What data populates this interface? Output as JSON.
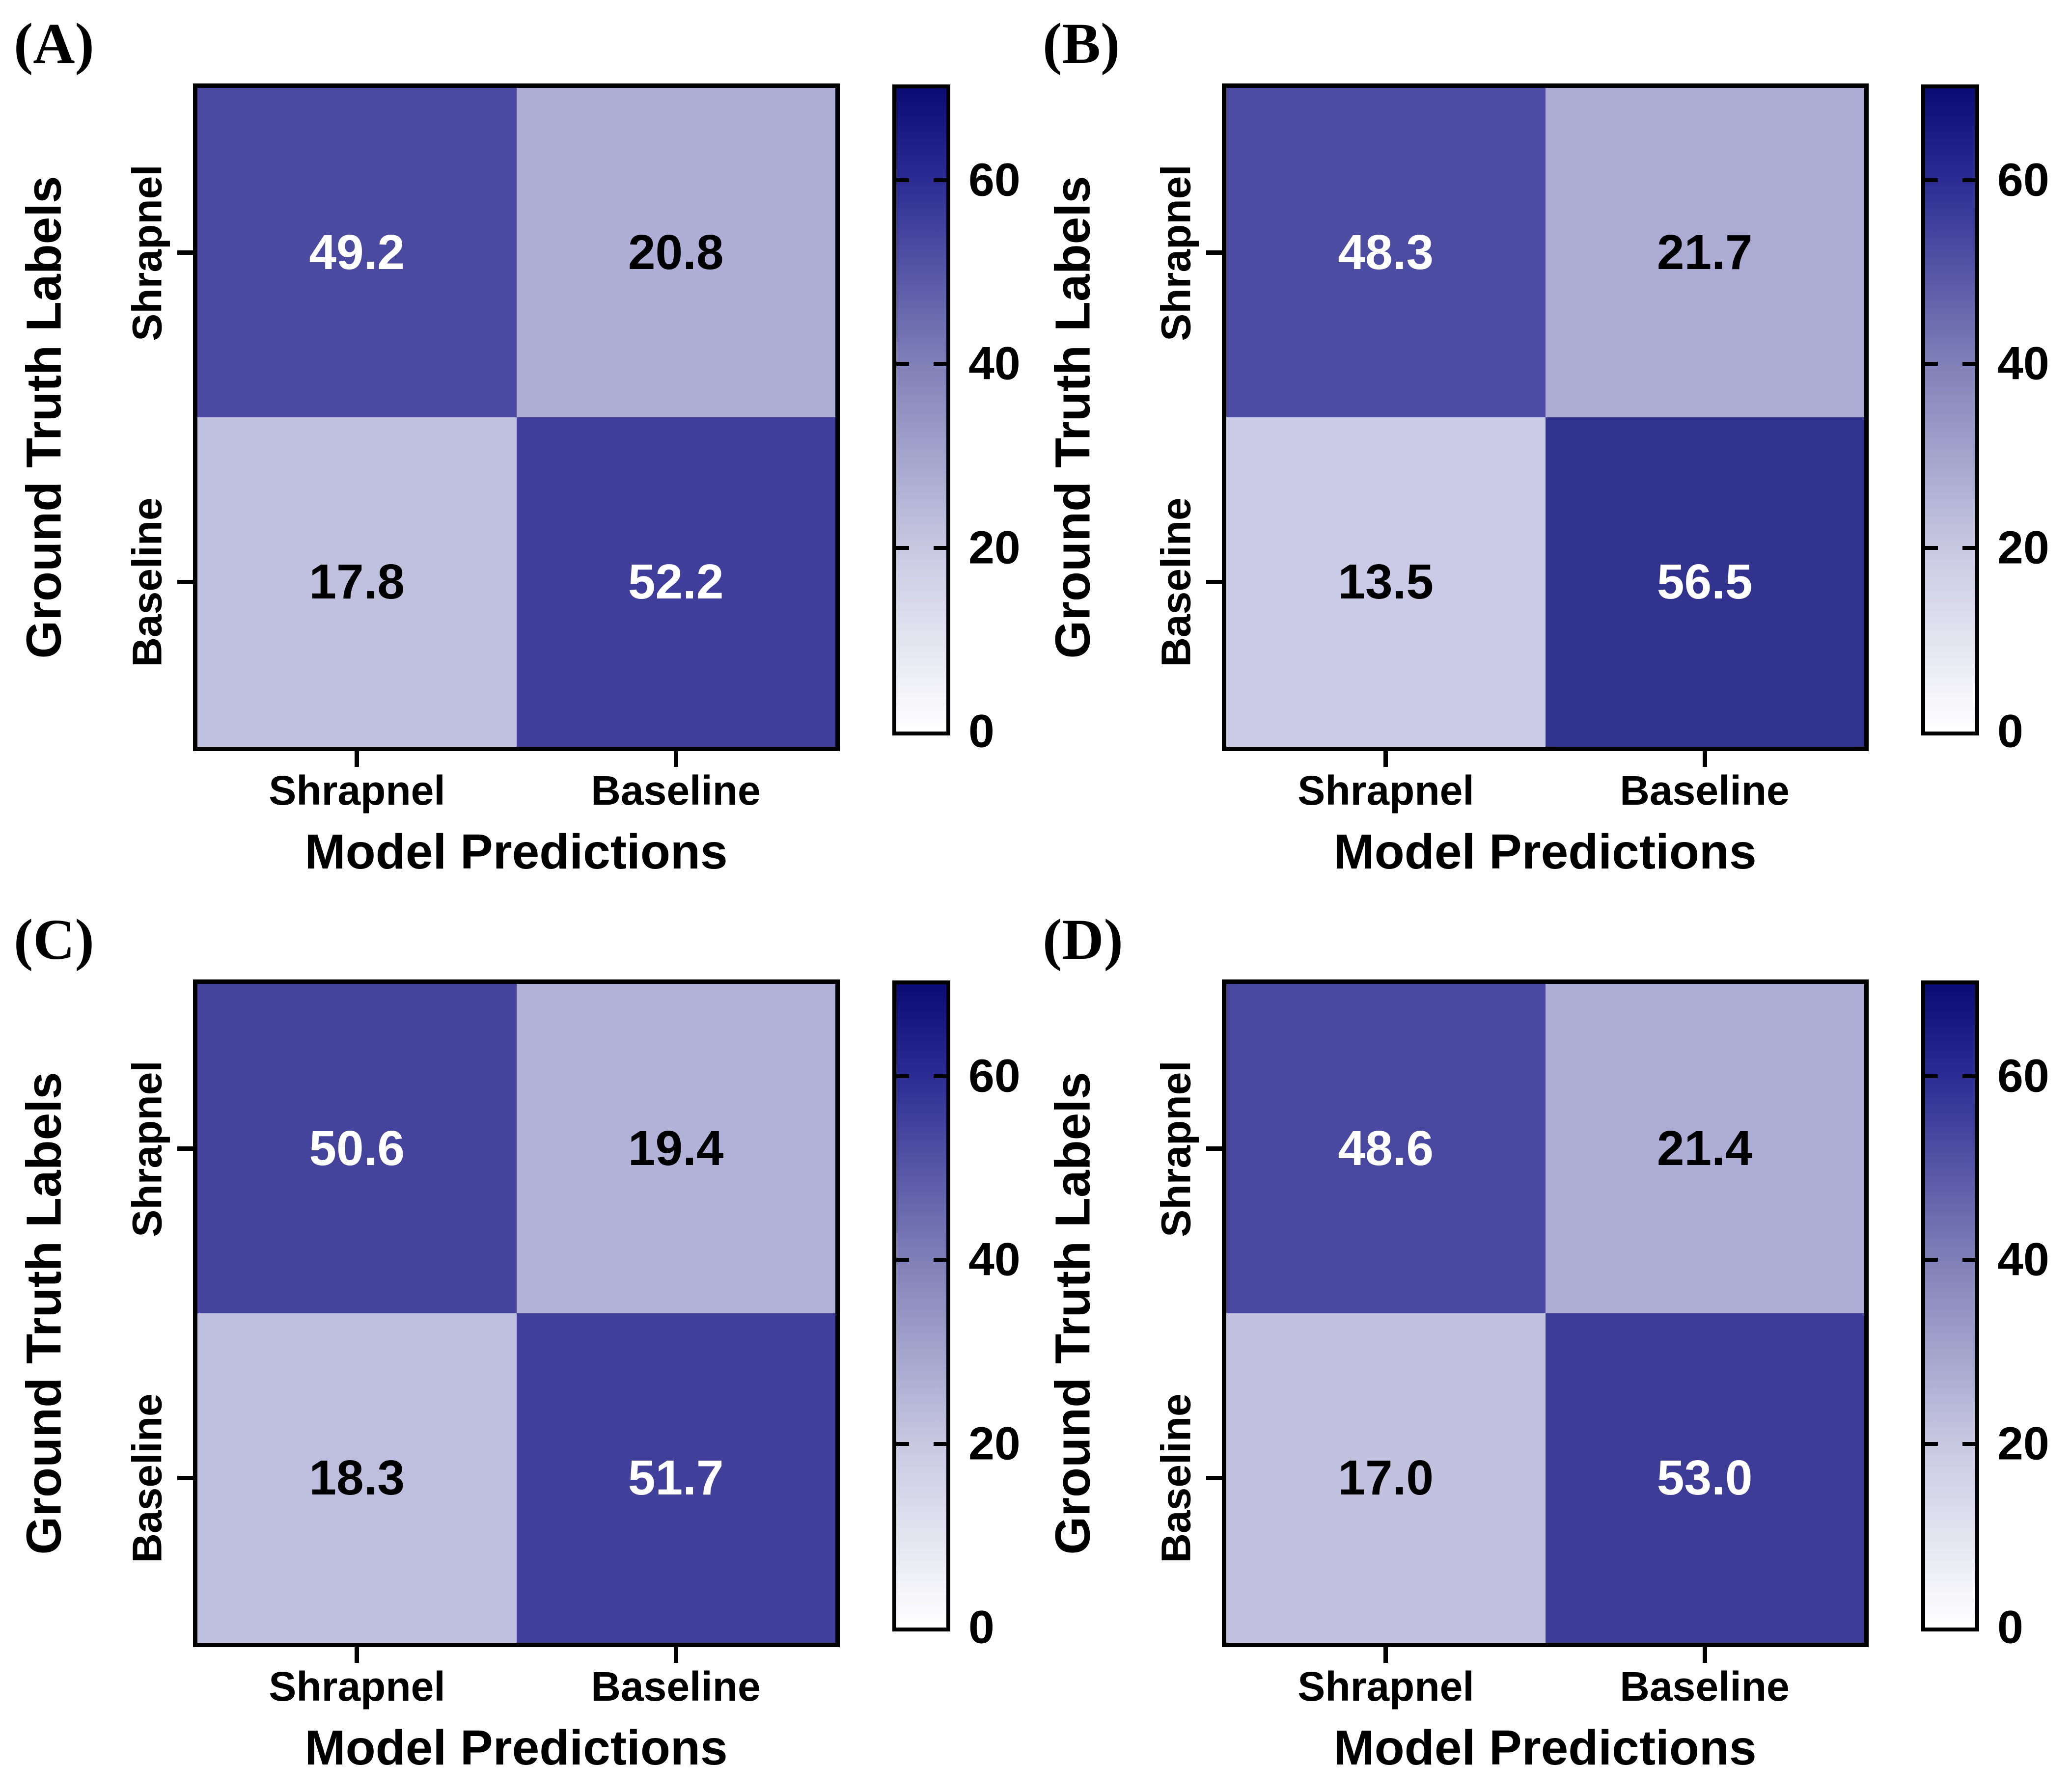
{
  "chart_data": [
    {
      "type": "heatmap",
      "panel_label": "(A)",
      "xlabel": "Model Predictions",
      "ylabel": "Ground Truth Labels",
      "x_categories": [
        "Shrapnel",
        "Baseline"
      ],
      "y_categories": [
        "Shrapnel",
        "Baseline"
      ],
      "values": [
        [
          49.2,
          20.8
        ],
        [
          17.8,
          52.2
        ]
      ],
      "cell_labels": [
        [
          "49.2",
          "20.8"
        ],
        [
          "17.8",
          "52.2"
        ]
      ],
      "cell_colors": [
        [
          "#4A4AA0",
          "#AEAED6"
        ],
        [
          "#C0C0DF",
          "#3F3F9B"
        ]
      ],
      "vmin": 0,
      "vmax": 70
    },
    {
      "type": "heatmap",
      "panel_label": "(B)",
      "xlabel": "Model Predictions",
      "ylabel": "Ground Truth Labels",
      "x_categories": [
        "Shrapnel",
        "Baseline"
      ],
      "y_categories": [
        "Shrapnel",
        "Baseline"
      ],
      "values": [
        [
          48.3,
          21.7
        ],
        [
          13.5,
          56.5
        ]
      ],
      "cell_labels": [
        [
          "48.3",
          "21.7"
        ],
        [
          "13.5",
          "56.5"
        ]
      ],
      "cell_colors": [
        [
          "#4C4CA2",
          "#ABABD4"
        ],
        [
          "#CBCBE7",
          "#32328F"
        ]
      ],
      "vmin": 0,
      "vmax": 70
    },
    {
      "type": "heatmap",
      "panel_label": "(C)",
      "xlabel": "Model Predictions",
      "ylabel": "Ground Truth Labels",
      "x_categories": [
        "Shrapnel",
        "Baseline"
      ],
      "y_categories": [
        "Shrapnel",
        "Baseline"
      ],
      "values": [
        [
          50.6,
          19.4
        ],
        [
          18.3,
          51.7
        ]
      ],
      "cell_labels": [
        [
          "50.6",
          "19.4"
        ],
        [
          "18.3",
          "51.7"
        ]
      ],
      "cell_colors": [
        [
          "#44449D",
          "#B2B2D8"
        ],
        [
          "#BEBEDE",
          "#41419B"
        ]
      ],
      "vmin": 0,
      "vmax": 70
    },
    {
      "type": "heatmap",
      "panel_label": "(D)",
      "xlabel": "Model Predictions",
      "ylabel": "Ground Truth Labels",
      "x_categories": [
        "Shrapnel",
        "Baseline"
      ],
      "y_categories": [
        "Shrapnel",
        "Baseline"
      ],
      "values": [
        [
          48.6,
          21.4
        ],
        [
          17.0,
          53.0
        ]
      ],
      "cell_labels": [
        [
          "48.6",
          "21.4"
        ],
        [
          "17.0",
          "53.0"
        ]
      ],
      "cell_colors": [
        [
          "#4848A0",
          "#ADADD5"
        ],
        [
          "#C2C2E0",
          "#3D3D98"
        ]
      ],
      "vmin": 0,
      "vmax": 70
    }
  ],
  "colorbar": {
    "vmin": 0,
    "vmax": 70,
    "tick_values": [
      0,
      20,
      40,
      60
    ],
    "tick_labels": [
      "0",
      "20",
      "40",
      "60"
    ],
    "gradient_stops": [
      {
        "value": 0,
        "color": "#FFFFFF"
      },
      {
        "value": 20,
        "color": "#C8C8E2"
      },
      {
        "value": 40,
        "color": "#8080B8"
      },
      {
        "value": 60,
        "color": "#2C2C94"
      },
      {
        "value": 70,
        "color": "#0B0B73"
      }
    ]
  }
}
